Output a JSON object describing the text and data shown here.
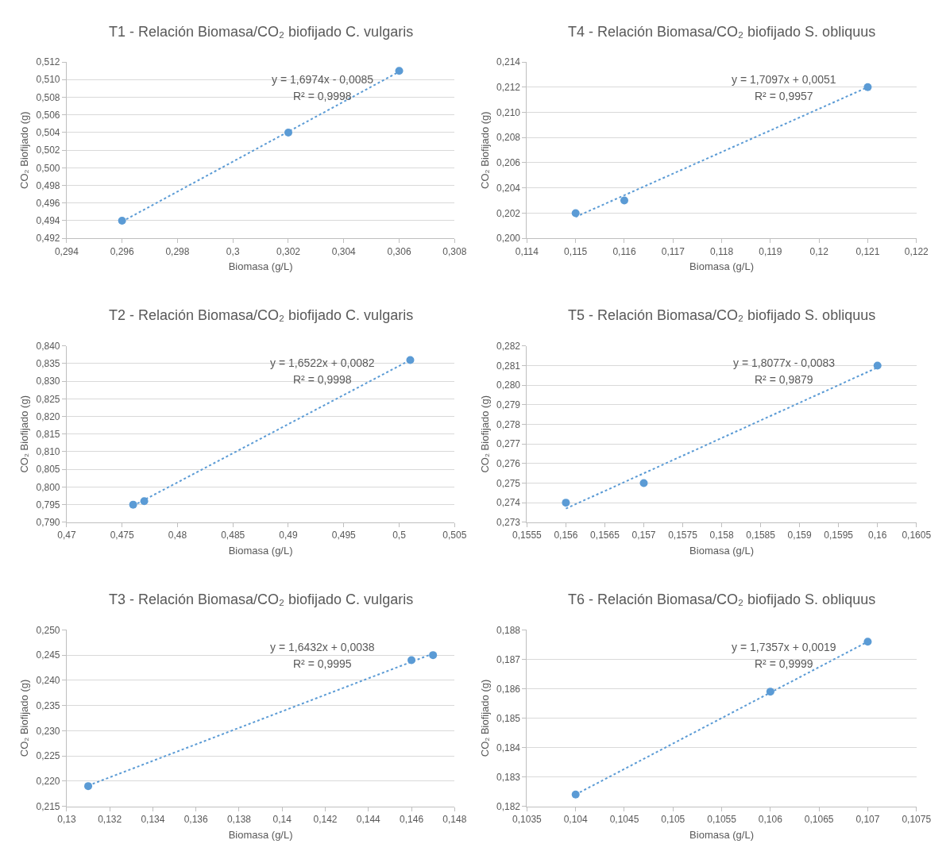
{
  "chart_data": [
    {
      "type": "scatter",
      "title": "T1 - Relación Biomasa/CO₂ biofijado C. vulgaris",
      "xlabel": "Biomasa (g/L)",
      "ylabel": "CO₂ Biofijado (g)",
      "grid": "y",
      "series": [
        {
          "marker": "circle",
          "color": "#5b9bd5",
          "x": [
            0.296,
            0.302,
            0.306
          ],
          "values": [
            0.494,
            0.504,
            0.511
          ]
        },
        {
          "type": "line",
          "line_style": "dotted",
          "color": "#5b9bd5",
          "x": [
            0.296,
            0.306
          ],
          "values": [
            0.4939,
            0.5109
          ]
        }
      ],
      "annotations": [
        "y = 1,6974x - 0,0085",
        "R² = 0,9998"
      ],
      "xlim": [
        0.294,
        0.308
      ],
      "xticks": [
        {
          "value": 0.294,
          "label": "0,294"
        },
        {
          "value": 0.296,
          "label": "0,296"
        },
        {
          "value": 0.298,
          "label": "0,298"
        },
        {
          "value": 0.3,
          "label": "0,3"
        },
        {
          "value": 0.302,
          "label": "0,302"
        },
        {
          "value": 0.304,
          "label": "0,304"
        },
        {
          "value": 0.306,
          "label": "0,306"
        },
        {
          "value": 0.308,
          "label": "0,308"
        }
      ],
      "ylim": [
        0.492,
        0.512
      ],
      "yticks": [
        {
          "value": 0.492,
          "label": "0,492"
        },
        {
          "value": 0.494,
          "label": "0,494"
        },
        {
          "value": 0.496,
          "label": "0,496"
        },
        {
          "value": 0.498,
          "label": "0,498"
        },
        {
          "value": 0.5,
          "label": "0,500"
        },
        {
          "value": 0.502,
          "label": "0,502"
        },
        {
          "value": 0.504,
          "label": "0,504"
        },
        {
          "value": 0.506,
          "label": "0,506"
        },
        {
          "value": 0.508,
          "label": "0,508"
        },
        {
          "value": 0.51,
          "label": "0,510"
        },
        {
          "value": 0.512,
          "label": "0,512"
        }
      ]
    },
    {
      "type": "scatter",
      "title": "T4 - Relación Biomasa/CO₂ biofijado S. obliquus",
      "xlabel": "Biomasa (g/L)",
      "ylabel": "CO₂ Biofijado (g)",
      "grid": "y",
      "series": [
        {
          "marker": "circle",
          "color": "#5b9bd5",
          "x": [
            0.115,
            0.116,
            0.121
          ],
          "values": [
            0.202,
            0.203,
            0.212
          ]
        },
        {
          "type": "line",
          "line_style": "dotted",
          "color": "#5b9bd5",
          "x": [
            0.115,
            0.121
          ],
          "values": [
            0.2017,
            0.212
          ]
        }
      ],
      "annotations": [
        "y = 1,7097x + 0,0051",
        "R² = 0,9957"
      ],
      "xlim": [
        0.114,
        0.122
      ],
      "xticks": [
        {
          "value": 0.114,
          "label": "0,114"
        },
        {
          "value": 0.115,
          "label": "0,115"
        },
        {
          "value": 0.116,
          "label": "0,116"
        },
        {
          "value": 0.117,
          "label": "0,117"
        },
        {
          "value": 0.118,
          "label": "0,118"
        },
        {
          "value": 0.119,
          "label": "0,119"
        },
        {
          "value": 0.12,
          "label": "0,12"
        },
        {
          "value": 0.121,
          "label": "0,121"
        },
        {
          "value": 0.122,
          "label": "0,122"
        }
      ],
      "ylim": [
        0.2,
        0.214
      ],
      "yticks": [
        {
          "value": 0.2,
          "label": "0,200"
        },
        {
          "value": 0.202,
          "label": "0,202"
        },
        {
          "value": 0.204,
          "label": "0,204"
        },
        {
          "value": 0.206,
          "label": "0,206"
        },
        {
          "value": 0.208,
          "label": "0,208"
        },
        {
          "value": 0.21,
          "label": "0,210"
        },
        {
          "value": 0.212,
          "label": "0,212"
        },
        {
          "value": 0.214,
          "label": "0,214"
        }
      ]
    },
    {
      "type": "scatter",
      "title": "T2 - Relación Biomasa/CO₂ biofijado C. vulgaris",
      "xlabel": "Biomasa (g/L)",
      "ylabel": "CO₂ Biofijado (g)",
      "grid": "y",
      "series": [
        {
          "marker": "circle",
          "color": "#5b9bd5",
          "x": [
            0.476,
            0.477,
            0.501
          ],
          "values": [
            0.795,
            0.796,
            0.836
          ]
        },
        {
          "type": "line",
          "line_style": "dotted",
          "color": "#5b9bd5",
          "x": [
            0.476,
            0.501
          ],
          "values": [
            0.7947,
            0.836
          ]
        }
      ],
      "annotations": [
        "y = 1,6522x + 0,0082",
        "R² = 0,9998"
      ],
      "xlim": [
        0.47,
        0.505
      ],
      "xticks": [
        {
          "value": 0.47,
          "label": "0,47"
        },
        {
          "value": 0.475,
          "label": "0,475"
        },
        {
          "value": 0.48,
          "label": "0,48"
        },
        {
          "value": 0.485,
          "label": "0,485"
        },
        {
          "value": 0.49,
          "label": "0,49"
        },
        {
          "value": 0.495,
          "label": "0,495"
        },
        {
          "value": 0.5,
          "label": "0,5"
        },
        {
          "value": 0.505,
          "label": "0,505"
        }
      ],
      "ylim": [
        0.79,
        0.84
      ],
      "yticks": [
        {
          "value": 0.79,
          "label": "0,790"
        },
        {
          "value": 0.795,
          "label": "0,795"
        },
        {
          "value": 0.8,
          "label": "0,800"
        },
        {
          "value": 0.805,
          "label": "0,805"
        },
        {
          "value": 0.81,
          "label": "0,810"
        },
        {
          "value": 0.815,
          "label": "0,815"
        },
        {
          "value": 0.82,
          "label": "0,820"
        },
        {
          "value": 0.825,
          "label": "0,825"
        },
        {
          "value": 0.83,
          "label": "0,830"
        },
        {
          "value": 0.835,
          "label": "0,835"
        },
        {
          "value": 0.84,
          "label": "0,840"
        }
      ]
    },
    {
      "type": "scatter",
      "title": "T5 - Relación Biomasa/CO₂ biofijado S. obliquus",
      "xlabel": "Biomasa (g/L)",
      "ylabel": "CO₂ Biofijado (g)",
      "grid": "y",
      "series": [
        {
          "marker": "circle",
          "color": "#5b9bd5",
          "x": [
            0.156,
            0.157,
            0.16
          ],
          "values": [
            0.274,
            0.275,
            0.281
          ]
        },
        {
          "type": "line",
          "line_style": "dotted",
          "color": "#5b9bd5",
          "x": [
            0.156,
            0.16
          ],
          "values": [
            0.2737,
            0.2809
          ]
        }
      ],
      "annotations": [
        "y = 1,8077x - 0,0083",
        "R² = 0,9879"
      ],
      "xlim": [
        0.1555,
        0.1605
      ],
      "xticks": [
        {
          "value": 0.1555,
          "label": "0,1555"
        },
        {
          "value": 0.156,
          "label": "0,156"
        },
        {
          "value": 0.1565,
          "label": "0,1565"
        },
        {
          "value": 0.157,
          "label": "0,157"
        },
        {
          "value": 0.1575,
          "label": "0,1575"
        },
        {
          "value": 0.158,
          "label": "0,158"
        },
        {
          "value": 0.1585,
          "label": "0,1585"
        },
        {
          "value": 0.159,
          "label": "0,159"
        },
        {
          "value": 0.1595,
          "label": "0,1595"
        },
        {
          "value": 0.16,
          "label": "0,16"
        },
        {
          "value": 0.1605,
          "label": "0,1605"
        }
      ],
      "ylim": [
        0.273,
        0.282
      ],
      "yticks": [
        {
          "value": 0.273,
          "label": "0,273"
        },
        {
          "value": 0.274,
          "label": "0,274"
        },
        {
          "value": 0.275,
          "label": "0,275"
        },
        {
          "value": 0.276,
          "label": "0,276"
        },
        {
          "value": 0.277,
          "label": "0,277"
        },
        {
          "value": 0.278,
          "label": "0,278"
        },
        {
          "value": 0.279,
          "label": "0,279"
        },
        {
          "value": 0.28,
          "label": "0,280"
        },
        {
          "value": 0.281,
          "label": "0,281"
        },
        {
          "value": 0.282,
          "label": "0,282"
        }
      ]
    },
    {
      "type": "scatter",
      "title": "T3 - Relación Biomasa/CO₂ biofijado C. vulgaris",
      "xlabel": "Biomasa (g/L)",
      "ylabel": "CO₂ Biofijado (g)",
      "grid": "y",
      "series": [
        {
          "marker": "circle",
          "color": "#5b9bd5",
          "x": [
            0.131,
            0.146,
            0.147
          ],
          "values": [
            0.219,
            0.244,
            0.245
          ]
        },
        {
          "type": "line",
          "line_style": "dotted",
          "color": "#5b9bd5",
          "x": [
            0.131,
            0.147
          ],
          "values": [
            0.2191,
            0.2453
          ]
        }
      ],
      "annotations": [
        "y = 1,6432x + 0,0038",
        "R² = 0,9995"
      ],
      "xlim": [
        0.13,
        0.148
      ],
      "xticks": [
        {
          "value": 0.13,
          "label": "0,13"
        },
        {
          "value": 0.132,
          "label": "0,132"
        },
        {
          "value": 0.134,
          "label": "0,134"
        },
        {
          "value": 0.136,
          "label": "0,136"
        },
        {
          "value": 0.138,
          "label": "0,138"
        },
        {
          "value": 0.14,
          "label": "0,14"
        },
        {
          "value": 0.142,
          "label": "0,142"
        },
        {
          "value": 0.144,
          "label": "0,144"
        },
        {
          "value": 0.146,
          "label": "0,146"
        },
        {
          "value": 0.148,
          "label": "0,148"
        }
      ],
      "ylim": [
        0.215,
        0.25
      ],
      "yticks": [
        {
          "value": 0.215,
          "label": "0,215"
        },
        {
          "value": 0.22,
          "label": "0,220"
        },
        {
          "value": 0.225,
          "label": "0,225"
        },
        {
          "value": 0.23,
          "label": "0,230"
        },
        {
          "value": 0.235,
          "label": "0,235"
        },
        {
          "value": 0.24,
          "label": "0,240"
        },
        {
          "value": 0.245,
          "label": "0,245"
        },
        {
          "value": 0.25,
          "label": "0,250"
        }
      ]
    },
    {
      "type": "scatter",
      "title": "T6 - Relación Biomasa/CO₂ biofijado S. obliquus",
      "xlabel": "Biomasa (g/L)",
      "ylabel": "CO₂ Biofijado (g)",
      "grid": "y",
      "series": [
        {
          "marker": "circle",
          "color": "#5b9bd5",
          "x": [
            0.104,
            0.106,
            0.107
          ],
          "values": [
            0.1824,
            0.1859,
            0.1876
          ]
        },
        {
          "type": "line",
          "line_style": "dotted",
          "color": "#5b9bd5",
          "x": [
            0.104,
            0.107
          ],
          "values": [
            0.1824,
            0.1876
          ]
        }
      ],
      "annotations": [
        "y = 1,7357x + 0,0019",
        "R² = 0,9999"
      ],
      "xlim": [
        0.1035,
        0.1075
      ],
      "xticks": [
        {
          "value": 0.1035,
          "label": "0,1035"
        },
        {
          "value": 0.104,
          "label": "0,104"
        },
        {
          "value": 0.1045,
          "label": "0,1045"
        },
        {
          "value": 0.105,
          "label": "0,105"
        },
        {
          "value": 0.1055,
          "label": "0,1055"
        },
        {
          "value": 0.106,
          "label": "0,106"
        },
        {
          "value": 0.1065,
          "label": "0,1065"
        },
        {
          "value": 0.107,
          "label": "0,107"
        },
        {
          "value": 0.1075,
          "label": "0,1075"
        }
      ],
      "ylim": [
        0.182,
        0.188
      ],
      "yticks": [
        {
          "value": 0.182,
          "label": "0,182"
        },
        {
          "value": 0.183,
          "label": "0,183"
        },
        {
          "value": 0.184,
          "label": "0,184"
        },
        {
          "value": 0.185,
          "label": "0,185"
        },
        {
          "value": 0.186,
          "label": "0,186"
        },
        {
          "value": 0.187,
          "label": "0,187"
        },
        {
          "value": 0.188,
          "label": "0,188"
        }
      ]
    }
  ]
}
